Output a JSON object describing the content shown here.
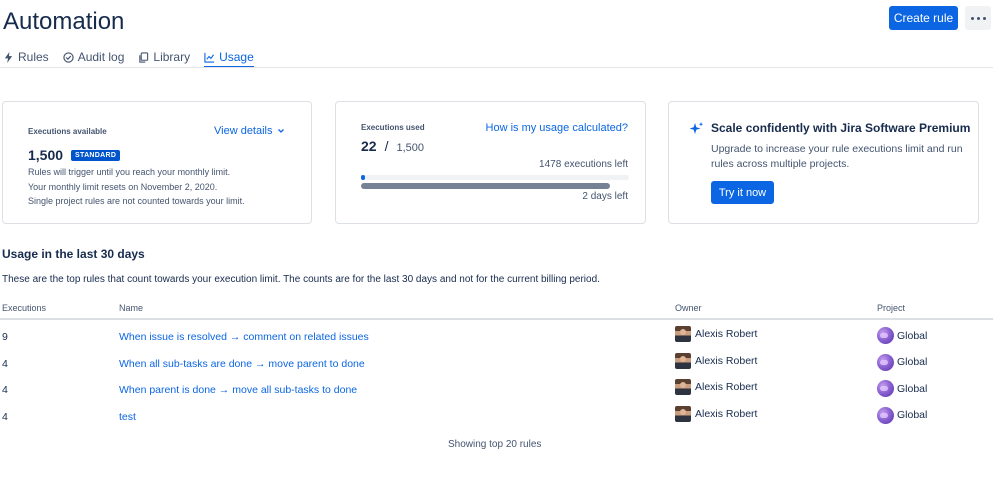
{
  "header": {
    "title": "Automation",
    "create_label": "Create rule"
  },
  "tabs": [
    {
      "label": "Rules",
      "icon": "lightning-icon"
    },
    {
      "label": "Audit log",
      "icon": "check-circle-icon"
    },
    {
      "label": "Library",
      "icon": "copy-icon"
    },
    {
      "label": "Usage",
      "icon": "chart-icon",
      "active": true
    }
  ],
  "available": {
    "label": "Executions available",
    "view_details": "View details",
    "amount": "1,500",
    "badge": "STANDARD",
    "lines": [
      "Rules will trigger until you reach your monthly limit.",
      "Your monthly limit resets on November 2, 2020.",
      "Single project rules are not counted towards your limit."
    ]
  },
  "used": {
    "label": "Executions used",
    "how_link": "How is my usage calculated?",
    "count": "22",
    "slash": "/",
    "total": "1,500",
    "executions_left": "1478 executions left",
    "usage_fraction": 0.0147,
    "days_fraction": 0.93,
    "days_left": "2 days left"
  },
  "premium": {
    "title": "Scale confidently with Jira Software Premium",
    "text": "Upgrade to increase your rule executions limit and run rules across multiple projects.",
    "button": "Try it now"
  },
  "usage_section": {
    "title": "Usage in the last 30 days",
    "description": "These are the top rules that count towards your execution limit. The counts are for the last 30 days and not for the current billing period."
  },
  "table": {
    "headers": {
      "executions": "Executions",
      "name": "Name",
      "owner": "Owner",
      "project": "Project"
    },
    "rows": [
      {
        "executions": "9",
        "name": "When issue is resolved → comment on related issues",
        "owner": "Alexis Robert",
        "project": "Global"
      },
      {
        "executions": "4",
        "name": "When all sub-tasks are done → move parent to done",
        "owner": "Alexis Robert",
        "project": "Global"
      },
      {
        "executions": "4",
        "name": "When parent is done → move all sub-tasks to done",
        "owner": "Alexis Robert",
        "project": "Global"
      },
      {
        "executions": "4",
        "name": "test",
        "owner": "Alexis Robert",
        "project": "Global"
      }
    ]
  },
  "footer": "Showing top 20 rules",
  "colors": {
    "primary": "#0c66e4",
    "badge": "#0055cc",
    "text": "#172b4d",
    "subtle": "#44546f"
  }
}
